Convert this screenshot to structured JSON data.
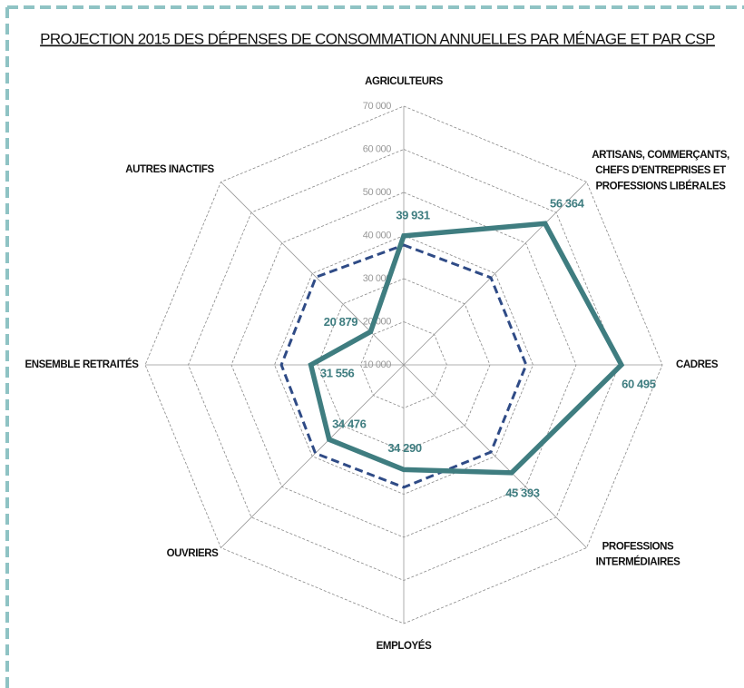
{
  "chart_data": {
    "type": "radar",
    "title": "PROJECTION 2015 DES DÉPENSES DE CONSOMMATION ANNUELLES PAR MÉNAGE ET PAR CSP",
    "categories": [
      "AGRICULTEURS",
      "ARTISANS, COMMERÇANTS,\nCHEFS D'ENTREPRISES ET\nPROFESSIONS LIBÉRALES",
      "CADRES",
      "PROFESSIONS\nINTERMÉDIAIRES",
      "EMPLOYÉS",
      "OUVRIERS",
      "ENSEMBLE RETRAITÉS",
      "AUTRES INACTIFS"
    ],
    "series": [
      {
        "color": "#3f7d80",
        "style": "solid",
        "values": [
          39931,
          56364,
          60495,
          45393,
          34290,
          34476,
          31556,
          20879
        ],
        "value_labels": [
          "39 931",
          "56 364",
          "60 495",
          "45 393",
          "34 290",
          "34 476",
          "31 556",
          "20 879"
        ]
      },
      {
        "color": "#2f4b86",
        "style": "dashed",
        "values": [
          37800,
          38600,
          38400,
          38600,
          38400,
          39000,
          38400,
          38800
        ]
      }
    ],
    "ylim": [
      10000,
      70000
    ],
    "yticks": [
      {
        "value": 10000,
        "label": "10 000"
      },
      {
        "value": 20000,
        "label": "20 000"
      },
      {
        "value": 30000,
        "label": "30 000"
      },
      {
        "value": 40000,
        "label": "40 000"
      },
      {
        "value": 50000,
        "label": "50 000"
      },
      {
        "value": 60000,
        "label": "60 000"
      },
      {
        "value": 70000,
        "label": "70 000"
      }
    ],
    "grid": true
  }
}
